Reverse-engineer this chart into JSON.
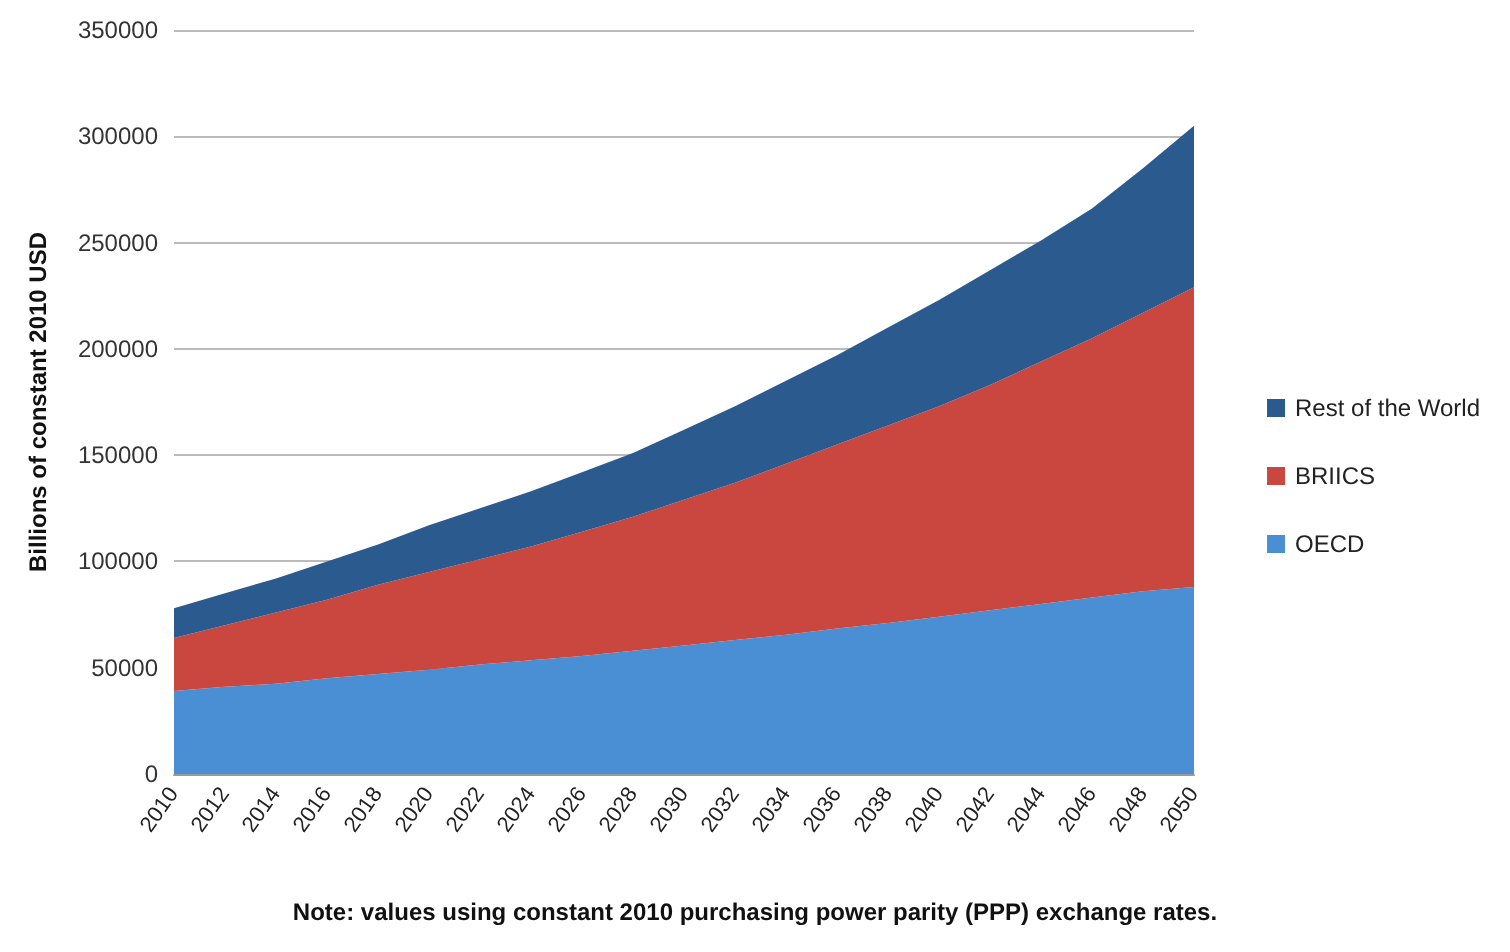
{
  "chart_data": {
    "type": "area",
    "stacked": true,
    "ylabel": "Billions of constant 2010 USD",
    "categories": [
      "2010",
      "2012",
      "2014",
      "2016",
      "2018",
      "2020",
      "2022",
      "2024",
      "2026",
      "2028",
      "2030",
      "2032",
      "2034",
      "2036",
      "2038",
      "2040",
      "2042",
      "2044",
      "2046",
      "2048",
      "2050"
    ],
    "series": [
      {
        "name": "OECD",
        "color": "#4a8fd4",
        "values": [
          39000,
          41000,
          42500,
          45000,
          47000,
          49000,
          51500,
          53500,
          55500,
          58000,
          60500,
          63000,
          65500,
          68500,
          71000,
          74000,
          77000,
          80000,
          83000,
          86000,
          88000
        ]
      },
      {
        "name": "BRIICS",
        "color": "#c9473f",
        "values": [
          25000,
          29000,
          33500,
          37000,
          42000,
          46000,
          49500,
          53500,
          58500,
          63000,
          68500,
          74000,
          80500,
          86500,
          93000,
          99000,
          106000,
          114000,
          122000,
          131000,
          141000
        ]
      },
      {
        "name": "Rest of the World",
        "color": "#2a5a8e",
        "values": [
          14000,
          15000,
          16000,
          18000,
          19000,
          22000,
          24000,
          26000,
          28000,
          30000,
          33000,
          36000,
          39000,
          42000,
          46000,
          50000,
          54000,
          57000,
          61000,
          68000,
          76000
        ]
      }
    ],
    "ylim": [
      0,
      350000
    ],
    "yticks": [
      0,
      50000,
      100000,
      150000,
      200000,
      250000,
      300000,
      350000
    ],
    "grid": "y",
    "legend": "right",
    "annotations": [
      "Note: values using constant 2010 purchasing power parity (PPP) exchange rates."
    ]
  }
}
